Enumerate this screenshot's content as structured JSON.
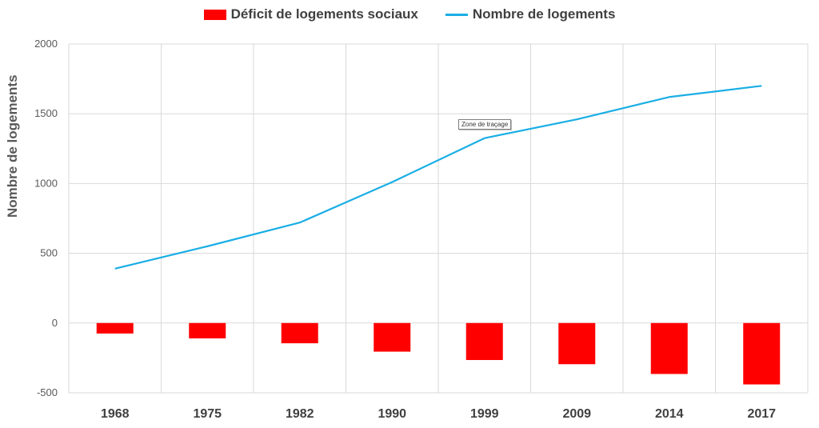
{
  "chart_data": {
    "type": "bar",
    "categories": [
      "1968",
      "1975",
      "1982",
      "1990",
      "1999",
      "2009",
      "2014",
      "2017"
    ],
    "series": [
      {
        "name": "Déficit de logements sociaux",
        "kind": "bar",
        "color": "#ff0000",
        "values": [
          -75,
          -110,
          -145,
          -205,
          -265,
          -295,
          -365,
          -440
        ]
      },
      {
        "name": "Nombre de logements",
        "kind": "line",
        "color": "#1aaee5",
        "values": [
          390,
          550,
          720,
          1010,
          1325,
          1460,
          1620,
          1700
        ]
      }
    ],
    "ylabel": "Nombre de logements",
    "ylim": [
      -500,
      2000
    ],
    "yticks": [
      "-500",
      "0",
      "500",
      "1000",
      "1500",
      "2000"
    ],
    "ytick_values": [
      -500,
      0,
      500,
      1000,
      1500,
      2000
    ],
    "grid": true,
    "legend_position": "top-center"
  },
  "tooltip": "Zone de traçage"
}
